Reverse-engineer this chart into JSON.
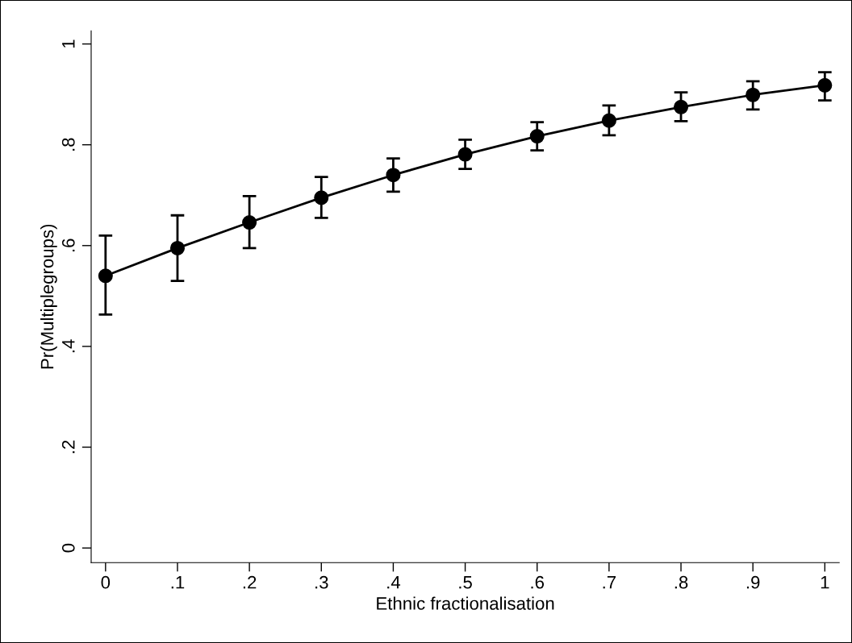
{
  "chart_data": {
    "type": "line",
    "xlabel": "Ethnic fractionalisation",
    "ylabel": "Pr(Multiplegroups)",
    "x": [
      0,
      0.1,
      0.2,
      0.3,
      0.4,
      0.5,
      0.6,
      0.7,
      0.8,
      0.9,
      1
    ],
    "series": [
      {
        "color": "#000000",
        "values": [
          0.54,
          0.595,
          0.646,
          0.695,
          0.74,
          0.781,
          0.817,
          0.848,
          0.875,
          0.899,
          0.918
        ],
        "errors": [
          [
            0.463,
            0.62
          ],
          [
            0.53,
            0.66
          ],
          [
            0.595,
            0.698
          ],
          [
            0.655,
            0.736
          ],
          [
            0.707,
            0.773
          ],
          [
            0.752,
            0.81
          ],
          [
            0.789,
            0.845
          ],
          [
            0.819,
            0.878
          ],
          [
            0.847,
            0.904
          ],
          [
            0.87,
            0.926
          ],
          [
            0.888,
            0.944
          ]
        ]
      }
    ],
    "marker": "circle",
    "line_style": "solid",
    "grid": false,
    "legend": false,
    "xlim": [
      -0.02,
      1.02
    ],
    "ylim": [
      -0.029,
      1.026
    ],
    "xticks": [
      0,
      {
        "value": 0.1,
        "label": ".1"
      },
      {
        "value": 0.2,
        "label": ".2"
      },
      {
        "value": 0.3,
        "label": ".3"
      },
      {
        "value": 0.4,
        "label": ".4"
      },
      {
        "value": 0.5,
        "label": ".5"
      },
      {
        "value": 0.6,
        "label": ".6"
      },
      {
        "value": 0.7,
        "label": ".7"
      },
      {
        "value": 0.8,
        "label": ".8"
      },
      {
        "value": 0.9,
        "label": ".9"
      },
      1
    ],
    "yticks": [
      0,
      {
        "value": 0.2,
        "label": ".2"
      },
      {
        "value": 0.4,
        "label": ".4"
      },
      {
        "value": 0.6,
        "label": ".6"
      },
      {
        "value": 0.8,
        "label": ".8"
      },
      1
    ]
  }
}
